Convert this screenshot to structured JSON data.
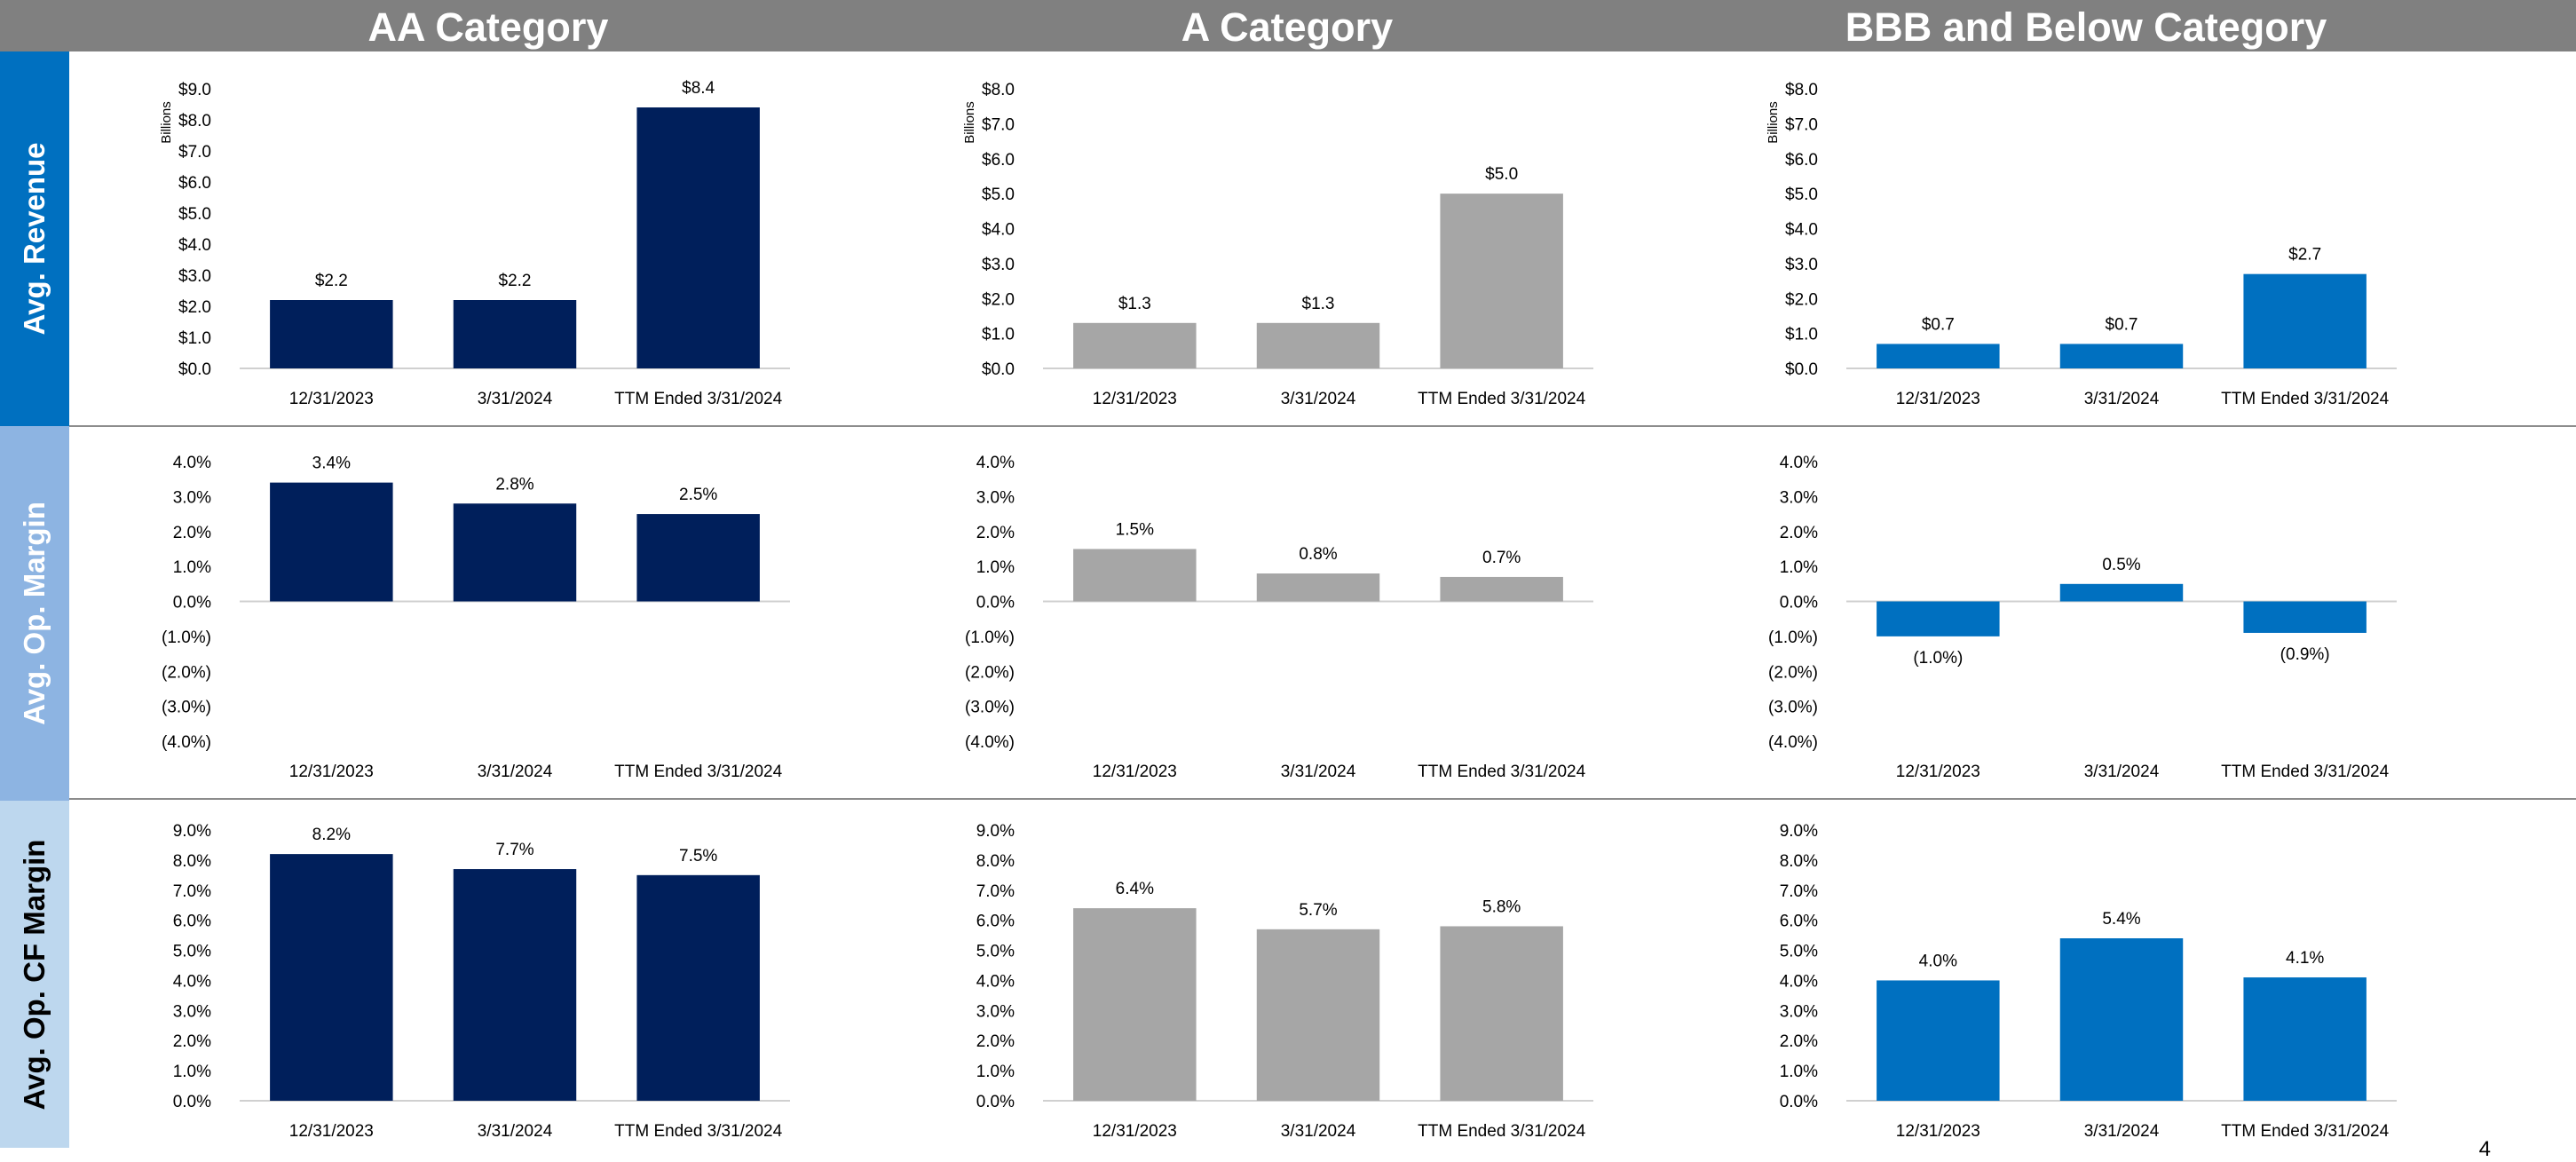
{
  "colors": {
    "header_bg": "#808080",
    "navy": "#001F5B",
    "gray": "#A6A6A6",
    "blue": "#0070C0",
    "row1_label_bg": "#0070C0",
    "row2_label_bg": "#8DB4E2",
    "row3_label_bg": "#BDD7EE"
  },
  "columns": [
    {
      "title": "AA Category"
    },
    {
      "title": "A Category"
    },
    {
      "title": "BBB and Below Category"
    }
  ],
  "rows": [
    {
      "label": "Avg. Revenue"
    },
    {
      "label": "Avg. Op. Margin"
    },
    {
      "label": "Avg. Op. CF Margin"
    }
  ],
  "page_number": "4",
  "chart_data": [
    {
      "id": "aa-revenue",
      "type": "bar",
      "categories": [
        "12/31/2023",
        "3/31/2024",
        "TTM Ended 3/31/2024"
      ],
      "values": [
        2.2,
        2.2,
        8.4
      ],
      "data_labels": [
        "$2.2",
        "$2.2",
        "$8.4"
      ],
      "ylabel": "Billions",
      "ylim": [
        0,
        9
      ],
      "yticks": [
        "$0.0",
        "$1.0",
        "$2.0",
        "$3.0",
        "$4.0",
        "$5.0",
        "$6.0",
        "$7.0",
        "$8.0",
        "$9.0"
      ],
      "color": "#001F5B"
    },
    {
      "id": "a-revenue",
      "type": "bar",
      "categories": [
        "12/31/2023",
        "3/31/2024",
        "TTM Ended 3/31/2024"
      ],
      "values": [
        1.3,
        1.3,
        5.0
      ],
      "data_labels": [
        "$1.3",
        "$1.3",
        "$5.0"
      ],
      "ylabel": "Billions",
      "ylim": [
        0,
        8
      ],
      "yticks": [
        "$0.0",
        "$1.0",
        "$2.0",
        "$3.0",
        "$4.0",
        "$5.0",
        "$6.0",
        "$7.0",
        "$8.0"
      ],
      "color": "#A6A6A6"
    },
    {
      "id": "bbb-revenue",
      "type": "bar",
      "categories": [
        "12/31/2023",
        "3/31/2024",
        "TTM Ended 3/31/2024"
      ],
      "values": [
        0.7,
        0.7,
        2.7
      ],
      "data_labels": [
        "$0.7",
        "$0.7",
        "$2.7"
      ],
      "ylabel": "Billions",
      "ylim": [
        0,
        8
      ],
      "yticks": [
        "$0.0",
        "$1.0",
        "$2.0",
        "$3.0",
        "$4.0",
        "$5.0",
        "$6.0",
        "$7.0",
        "$8.0"
      ],
      "color": "#0070C0"
    },
    {
      "id": "aa-op-margin",
      "type": "bar",
      "categories": [
        "12/31/2023",
        "3/31/2024",
        "TTM Ended 3/31/2024"
      ],
      "values": [
        3.4,
        2.8,
        2.5
      ],
      "data_labels": [
        "3.4%",
        "2.8%",
        "2.5%"
      ],
      "ylabel": "",
      "ylim": [
        -4,
        4
      ],
      "yticks": [
        "(4.0%)",
        "(3.0%)",
        "(2.0%)",
        "(1.0%)",
        "0.0%",
        "1.0%",
        "2.0%",
        "3.0%",
        "4.0%"
      ],
      "color": "#001F5B"
    },
    {
      "id": "a-op-margin",
      "type": "bar",
      "categories": [
        "12/31/2023",
        "3/31/2024",
        "TTM Ended 3/31/2024"
      ],
      "values": [
        1.5,
        0.8,
        0.7
      ],
      "data_labels": [
        "1.5%",
        "0.8%",
        "0.7%"
      ],
      "ylabel": "",
      "ylim": [
        -4,
        4
      ],
      "yticks": [
        "(4.0%)",
        "(3.0%)",
        "(2.0%)",
        "(1.0%)",
        "0.0%",
        "1.0%",
        "2.0%",
        "3.0%",
        "4.0%"
      ],
      "color": "#A6A6A6"
    },
    {
      "id": "bbb-op-margin",
      "type": "bar",
      "categories": [
        "12/31/2023",
        "3/31/2024",
        "TTM Ended 3/31/2024"
      ],
      "values": [
        -1.0,
        0.5,
        -0.9
      ],
      "data_labels": [
        "(1.0%)",
        "0.5%",
        "(0.9%)"
      ],
      "ylabel": "",
      "ylim": [
        -4,
        4
      ],
      "yticks": [
        "(4.0%)",
        "(3.0%)",
        "(2.0%)",
        "(1.0%)",
        "0.0%",
        "1.0%",
        "2.0%",
        "3.0%",
        "4.0%"
      ],
      "color": "#0070C0"
    },
    {
      "id": "aa-cf-margin",
      "type": "bar",
      "categories": [
        "12/31/2023",
        "3/31/2024",
        "TTM Ended 3/31/2024"
      ],
      "values": [
        8.2,
        7.7,
        7.5
      ],
      "data_labels": [
        "8.2%",
        "7.7%",
        "7.5%"
      ],
      "ylabel": "",
      "ylim": [
        0,
        9
      ],
      "yticks": [
        "0.0%",
        "1.0%",
        "2.0%",
        "3.0%",
        "4.0%",
        "5.0%",
        "6.0%",
        "7.0%",
        "8.0%",
        "9.0%"
      ],
      "color": "#001F5B"
    },
    {
      "id": "a-cf-margin",
      "type": "bar",
      "categories": [
        "12/31/2023",
        "3/31/2024",
        "TTM Ended 3/31/2024"
      ],
      "values": [
        6.4,
        5.7,
        5.8
      ],
      "data_labels": [
        "6.4%",
        "5.7%",
        "5.8%"
      ],
      "ylabel": "",
      "ylim": [
        0,
        9
      ],
      "yticks": [
        "0.0%",
        "1.0%",
        "2.0%",
        "3.0%",
        "4.0%",
        "5.0%",
        "6.0%",
        "7.0%",
        "8.0%",
        "9.0%"
      ],
      "color": "#A6A6A6"
    },
    {
      "id": "bbb-cf-margin",
      "type": "bar",
      "categories": [
        "12/31/2023",
        "3/31/2024",
        "TTM Ended 3/31/2024"
      ],
      "values": [
        4.0,
        5.4,
        4.1
      ],
      "data_labels": [
        "4.0%",
        "5.4%",
        "4.1%"
      ],
      "ylabel": "",
      "ylim": [
        0,
        9
      ],
      "yticks": [
        "0.0%",
        "1.0%",
        "2.0%",
        "3.0%",
        "4.0%",
        "5.0%",
        "6.0%",
        "7.0%",
        "8.0%",
        "9.0%"
      ],
      "color": "#0070C0"
    }
  ]
}
